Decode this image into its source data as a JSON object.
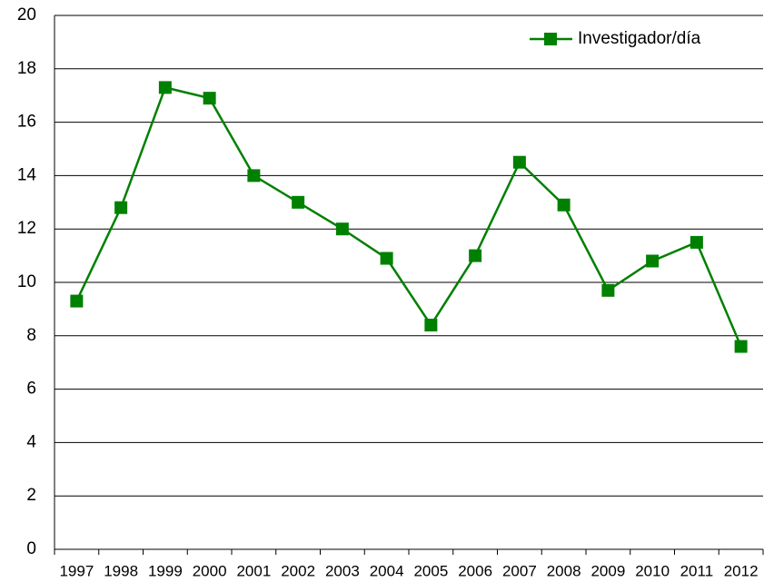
{
  "chart_data": {
    "type": "line",
    "categories": [
      "1997",
      "1998",
      "1999",
      "2000",
      "2001",
      "2002",
      "2003",
      "2004",
      "2005",
      "2006",
      "2007",
      "2008",
      "2009",
      "2010",
      "2011",
      "2012"
    ],
    "series": [
      {
        "name": "Investigador/día",
        "color": "#008000",
        "values": [
          9.3,
          12.8,
          17.3,
          16.9,
          14.0,
          13.0,
          12.0,
          10.9,
          8.4,
          11.0,
          14.5,
          12.9,
          9.7,
          10.8,
          11.5,
          7.6
        ]
      }
    ],
    "ylim": [
      0,
      20
    ],
    "yticks": [
      0,
      2,
      4,
      6,
      8,
      10,
      12,
      14,
      16,
      18,
      20
    ],
    "grid": true,
    "legend": "top-right"
  }
}
